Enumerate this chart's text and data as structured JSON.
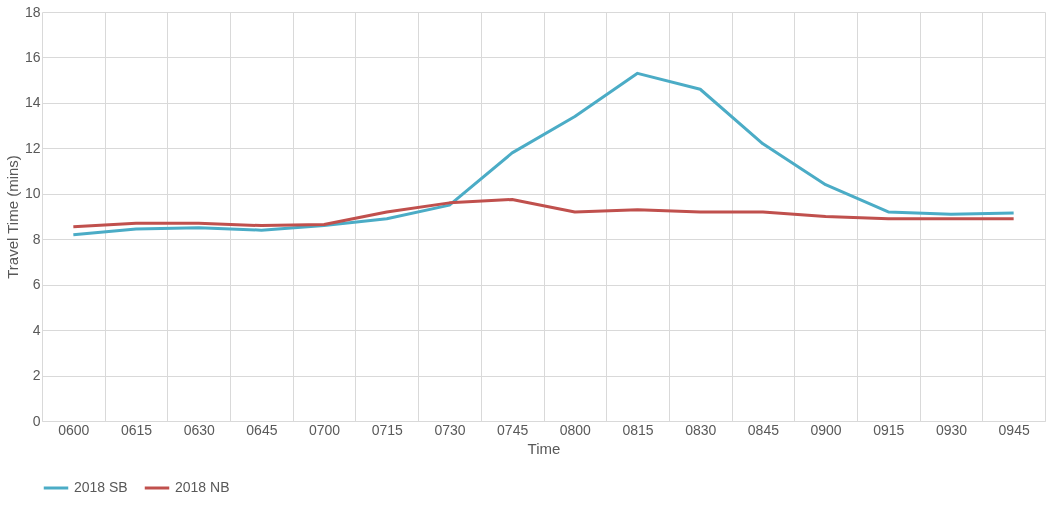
{
  "chart_data": {
    "type": "line",
    "xlabel": "Time",
    "ylabel": "Travel Time (mins)",
    "categories": [
      "0600",
      "0615",
      "0630",
      "0645",
      "0700",
      "0715",
      "0730",
      "0745",
      "0800",
      "0815",
      "0830",
      "0845",
      "0900",
      "0915",
      "0930",
      "0945"
    ],
    "series": [
      {
        "name": "2018 SB",
        "color": "#4bacc6",
        "values": [
          8.2,
          8.45,
          8.5,
          8.4,
          8.6,
          8.9,
          9.5,
          11.8,
          13.4,
          15.3,
          14.6,
          12.2,
          10.4,
          9.2,
          9.1,
          9.15
        ]
      },
      {
        "name": "2018 NB",
        "color": "#c0504d",
        "values": [
          8.55,
          8.7,
          8.7,
          8.6,
          8.65,
          9.2,
          9.6,
          9.75,
          9.2,
          9.3,
          9.2,
          9.2,
          9.0,
          8.9,
          8.9,
          8.9
        ]
      }
    ],
    "ylim": [
      0,
      18
    ],
    "yticks": [
      0,
      2,
      4,
      6,
      8,
      10,
      12,
      14,
      16,
      18
    ],
    "grid": true,
    "legend": "bottom",
    "marker": "none",
    "line_style": "solid"
  }
}
